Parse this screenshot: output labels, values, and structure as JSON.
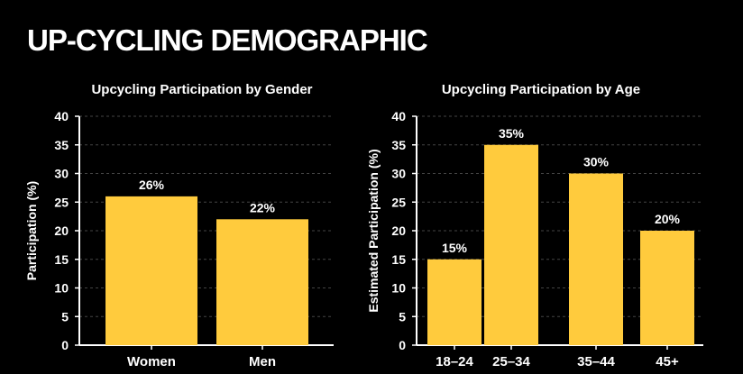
{
  "page": {
    "title": "UP-CYCLING DEMOGRAPHIC"
  },
  "colors": {
    "background": "#000000",
    "bar": "#FFCB3D",
    "text": "#FFFFFF",
    "axis": "#FFFFFF",
    "grid": "#444444"
  },
  "chart_data": [
    {
      "type": "bar",
      "title": "Upcycling Participation by Gender",
      "xlabel": "",
      "ylabel": "Participation (%)",
      "categories": [
        "Women",
        "Men"
      ],
      "values": [
        26,
        22
      ],
      "value_labels": [
        "26%",
        "22%"
      ],
      "ylim": [
        0,
        40
      ],
      "yticks": [
        0,
        5,
        10,
        15,
        20,
        25,
        30,
        35,
        40
      ],
      "grid": "horizontal dashed"
    },
    {
      "type": "bar",
      "title": "Upcycling Participation by Age",
      "xlabel": "",
      "ylabel": "Estimated Participation (%)",
      "categories": [
        "18–24",
        "25–34",
        "35–44",
        "45+"
      ],
      "values": [
        15,
        35,
        30,
        20
      ],
      "value_labels": [
        "15%",
        "35%",
        "30%",
        "20%"
      ],
      "ylim": [
        0,
        40
      ],
      "yticks": [
        0,
        5,
        10,
        15,
        20,
        25,
        30,
        35,
        40
      ],
      "grid": "horizontal dashed"
    }
  ]
}
